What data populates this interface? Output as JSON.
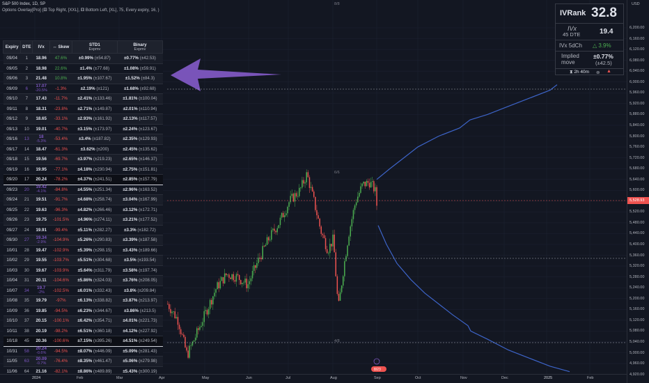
{
  "legend": {
    "symbol": "S&P 500 Index, 1D, SP",
    "indicator": "Options Overlay[Pro] (⚅ Top Right, [XXL], ⚅ Bottom Left, [XL], 75, Every expiry, 16, )"
  },
  "table": {
    "headers": [
      "Expiry",
      "DTE",
      "IVx",
      "↔ Skew",
      "STD1",
      "Binary"
    ],
    "sub_headers": {
      "std1": "Expmv",
      "binary": "Expmv"
    },
    "rows": [
      {
        "expiry": "09/04",
        "dte": "1",
        "ivx": "18.96",
        "skew": "47.6%",
        "std1": "±0.99%",
        "std1p": "(±54.87)",
        "bin": "±0.77%",
        "binp": "(±42.53)",
        "skewcls": "pos"
      },
      {
        "expiry": "09/05",
        "dte": "2",
        "ivx": "18.98",
        "skew": "22.6%",
        "std1": "±1.4%",
        "std1p": "(±77.68)",
        "bin": "±1.08%",
        "binp": "(±59.91)",
        "skewcls": "pos"
      },
      {
        "expiry": "09/06",
        "dte": "3",
        "ivx": "21.48",
        "skew": "10.8%",
        "std1": "±1.95%",
        "std1p": "(±107.67)",
        "bin": "±1.52%",
        "binp": "(±84.3)",
        "skewcls": "pos"
      },
      {
        "expiry": "09/09",
        "dte": "6",
        "ivx": "17.07",
        "ivx2": "-20.5%",
        "skew": "-1.3%",
        "std1": "±2.19%",
        "std1p": "(±121)",
        "bin": "±1.68%",
        "binp": "(±92.68)",
        "skewcls": "neg",
        "pur": true
      },
      {
        "expiry": "09/10",
        "dte": "7",
        "ivx": "17.43",
        "skew": "-11.7%",
        "std1": "±2.41%",
        "std1p": "(±133.46)",
        "bin": "±1.81%",
        "binp": "(±100.04)",
        "skewcls": "neg"
      },
      {
        "expiry": "09/11",
        "dte": "8",
        "ivx": "18.31",
        "skew": "-23.8%",
        "std1": "±2.71%",
        "std1p": "(±149.87)",
        "bin": "±2.01%",
        "binp": "(±110.94)",
        "skewcls": "neg"
      },
      {
        "expiry": "09/12",
        "dte": "9",
        "ivx": "18.65",
        "skew": "-33.1%",
        "std1": "±2.93%",
        "std1p": "(±161.92)",
        "bin": "±2.13%",
        "binp": "(±117.57)",
        "skewcls": "neg"
      },
      {
        "expiry": "09/13",
        "dte": "10",
        "ivx": "19.01",
        "skew": "-40.7%",
        "std1": "±3.15%",
        "std1p": "(±173.97)",
        "bin": "±2.24%",
        "binp": "(±123.67)",
        "skewcls": "neg"
      },
      {
        "expiry": "09/16",
        "dte": "13",
        "ivx": "18",
        "ivx2": "-5.3%",
        "skew": "-53.4%",
        "std1": "±3.4%",
        "std1p": "(±187.82)",
        "bin": "±2.35%",
        "binp": "(±129.93)",
        "skewcls": "neg",
        "pur": true
      },
      {
        "expiry": "09/17",
        "dte": "14",
        "ivx": "18.47",
        "skew": "-61.3%",
        "std1": "±3.62%",
        "std1p": "(±200)",
        "bin": "±2.45%",
        "binp": "(±135.62)",
        "skewcls": "neg"
      },
      {
        "expiry": "09/18",
        "dte": "15",
        "ivx": "19.56",
        "skew": "-69.7%",
        "std1": "±3.97%",
        "std1p": "(±219.23)",
        "bin": "±2.65%",
        "binp": "(±146.37)",
        "skewcls": "neg"
      },
      {
        "expiry": "09/19",
        "dte": "16",
        "ivx": "19.95",
        "skew": "-77.1%",
        "std1": "±4.18%",
        "std1p": "(±230.94)",
        "bin": "±2.75%",
        "binp": "(±151.81)",
        "skewcls": "neg"
      },
      {
        "expiry": "09/20",
        "dte": "17",
        "ivx": "20.24",
        "skew": "-78.2%",
        "std1": "±4.37%",
        "std1p": "(±241.51)",
        "bin": "±2.85%",
        "binp": "(±157.79)",
        "skewcls": "neg",
        "hl": true
      },
      {
        "expiry": "09/23",
        "dte": "20",
        "ivx": "19.42",
        "ivx2": "-4.1%",
        "skew": "-84.8%",
        "std1": "±4.55%",
        "std1p": "(±251.34)",
        "bin": "±2.96%",
        "binp": "(±163.52)",
        "skewcls": "neg",
        "pur": true
      },
      {
        "expiry": "09/24",
        "dte": "21",
        "ivx": "19.51",
        "skew": "-91.7%",
        "std1": "±4.68%",
        "std1p": "(±258.74)",
        "bin": "±3.04%",
        "binp": "(±167.99)",
        "skewcls": "neg"
      },
      {
        "expiry": "09/25",
        "dte": "22",
        "ivx": "19.63",
        "skew": "-96.3%",
        "std1": "±4.82%",
        "std1p": "(±266.46)",
        "bin": "±3.12%",
        "binp": "(±172.71)",
        "skewcls": "neg"
      },
      {
        "expiry": "09/26",
        "dte": "23",
        "ivx": "19.75",
        "skew": "-101.5%",
        "std1": "±4.96%",
        "std1p": "(±274.11)",
        "bin": "±3.21%",
        "binp": "(±177.52)",
        "skewcls": "neg"
      },
      {
        "expiry": "09/27",
        "dte": "24",
        "ivx": "19.91",
        "skew": "-99.4%",
        "std1": "±5.11%",
        "std1p": "(±282.27)",
        "bin": "±3.3%",
        "binp": "(±182.72)",
        "skewcls": "neg"
      },
      {
        "expiry": "09/30",
        "dte": "27",
        "ivx": "19.34",
        "ivx2": "-2.9%",
        "skew": "-104.9%",
        "std1": "±5.26%",
        "std1p": "(±290.83)",
        "bin": "±3.39%",
        "binp": "(±187.58)",
        "skewcls": "neg",
        "pur": true
      },
      {
        "expiry": "10/01",
        "dte": "28",
        "ivx": "19.47",
        "skew": "-102.9%",
        "std1": "±5.39%",
        "std1p": "(±298.15)",
        "bin": "±3.43%",
        "binp": "(±189.66)",
        "skewcls": "neg"
      },
      {
        "expiry": "10/02",
        "dte": "29",
        "ivx": "19.55",
        "skew": "-103.7%",
        "std1": "±5.51%",
        "std1p": "(±304.68)",
        "bin": "±3.5%",
        "binp": "(±193.54)",
        "skewcls": "neg"
      },
      {
        "expiry": "10/03",
        "dte": "30",
        "ivx": "19.67",
        "skew": "-103.9%",
        "std1": "±5.64%",
        "std1p": "(±311.79)",
        "bin": "±3.58%",
        "binp": "(±197.74)",
        "skewcls": "neg"
      },
      {
        "expiry": "10/04",
        "dte": "31",
        "ivx": "20.11",
        "skew": "-104.6%",
        "std1": "±5.86%",
        "std1p": "(±324.03)",
        "bin": "±3.76%",
        "binp": "(±208.05)",
        "skewcls": "neg"
      },
      {
        "expiry": "10/07",
        "dte": "34",
        "ivx": "19.7",
        "ivx2": "-2%",
        "skew": "-102.5%",
        "std1": "±6.01%",
        "std1p": "(±332.43)",
        "bin": "±3.8%",
        "binp": "(±209.84)",
        "skewcls": "neg",
        "pur": true
      },
      {
        "expiry": "10/08",
        "dte": "35",
        "ivx": "19.79",
        "skew": "-97%",
        "std1": "±6.13%",
        "std1p": "(±338.82)",
        "bin": "±3.87%",
        "binp": "(±213.97)",
        "skewcls": "neg"
      },
      {
        "expiry": "10/09",
        "dte": "36",
        "ivx": "19.85",
        "skew": "-94.5%",
        "std1": "±6.23%",
        "std1p": "(±344.67)",
        "bin": "±3.86%",
        "binp": "(±213.5)",
        "skewcls": "neg"
      },
      {
        "expiry": "10/10",
        "dte": "37",
        "ivx": "20.15",
        "skew": "-100.1%",
        "std1": "±6.42%",
        "std1p": "(±354.71)",
        "bin": "±4.01%",
        "binp": "(±221.73)",
        "skewcls": "neg"
      },
      {
        "expiry": "10/11",
        "dte": "38",
        "ivx": "20.19",
        "skew": "-98.2%",
        "std1": "±6.51%",
        "std1p": "(±360.18)",
        "bin": "±4.12%",
        "binp": "(±227.92)",
        "skewcls": "neg"
      },
      {
        "expiry": "10/18",
        "dte": "45",
        "ivx": "20.36",
        "skew": "-100.6%",
        "std1": "±7.15%",
        "std1p": "(±395.26)",
        "bin": "±4.51%",
        "binp": "(±249.54)",
        "skewcls": "neg",
        "hl": true
      },
      {
        "expiry": "10/31",
        "dte": "58",
        "ivx": "20.24",
        "ivx2": "-0.6%",
        "skew": "-94.5%",
        "std1": "±8.07%",
        "std1p": "(±446.09)",
        "bin": "±5.09%",
        "binp": "(±281.43)",
        "skewcls": "neg",
        "pur": true
      },
      {
        "expiry": "11/05",
        "dte": "63",
        "ivx": "20.09",
        "ivx2": "-0.7%",
        "skew": "-76.4%",
        "std1": "±8.35%",
        "std1p": "(±461.47)",
        "bin": "±5.06%",
        "binp": "(±279.98)",
        "skewcls": "neg",
        "pur": true
      },
      {
        "expiry": "11/06",
        "dte": "64",
        "ivx": "21.16",
        "skew": "-82.1%",
        "std1": "±8.86%",
        "std1p": "(±489.89)",
        "bin": "±5.43%",
        "binp": "(±300.19)",
        "skewcls": "neg"
      },
      {
        "expiry": "11/15",
        "dte": "73",
        "ivx": "21.34",
        "skew": "-87.8%",
        "std1": "±9.54%",
        "std1p": "(±527.65)",
        "bin": "±6.06%",
        "binp": "(±335.05)",
        "skewcls": "neg",
        "hl": true
      }
    ]
  },
  "ivr_panel": {
    "ivrank_label": "IVRank",
    "ivrank_value": "32.8",
    "ivx_label": "IVx",
    "dte_label": "45 DTE",
    "ivx_value": "19.4",
    "ivx5d_label": "IVx 5dCh",
    "ivx5d_value": "△ 3.9%",
    "implied_label": "Implied move",
    "implied_value": "±0.77%",
    "implied_pts": "(±42.5)",
    "timer": "⧗ 2h 40m"
  },
  "price_axis": {
    "currency": "USD",
    "labels": [
      "6,200.00",
      "6,160.00",
      "6,120.00",
      "6,080.00",
      "6,040.00",
      "6,000.00",
      "5,960.00",
      "5,920.00",
      "5,880.00",
      "5,840.00",
      "5,800.00",
      "5,760.00",
      "5,720.00",
      "5,680.00",
      "5,640.00",
      "5,600.00",
      "5,560.00",
      "5,520.00",
      "5,480.00",
      "5,440.00",
      "5,400.00",
      "5,360.00",
      "5,320.00",
      "5,280.00",
      "5,240.00",
      "5,200.00",
      "5,160.00",
      "5,120.00",
      "5,080.00",
      "5,040.00",
      "5,000.00",
      "4,960.00",
      "4,920.00"
    ],
    "current": "5,528.93"
  },
  "time_axis": {
    "labels": [
      "2024",
      "Feb",
      "Mar",
      "Apr",
      "May",
      "Jun",
      "Jul",
      "Aug",
      "Sep",
      "Oct",
      "Nov",
      "Dec",
      "2025",
      "Feb"
    ]
  },
  "chart_marks": {
    "date_8_8": "8/8",
    "date_6_6": "6/6",
    "date_4_8": "4/8",
    "badge": "8/23"
  },
  "colors": {
    "up": "#4caf50",
    "down": "#ef5350",
    "accent": "#7e57c2",
    "line": "#3d64c8"
  }
}
